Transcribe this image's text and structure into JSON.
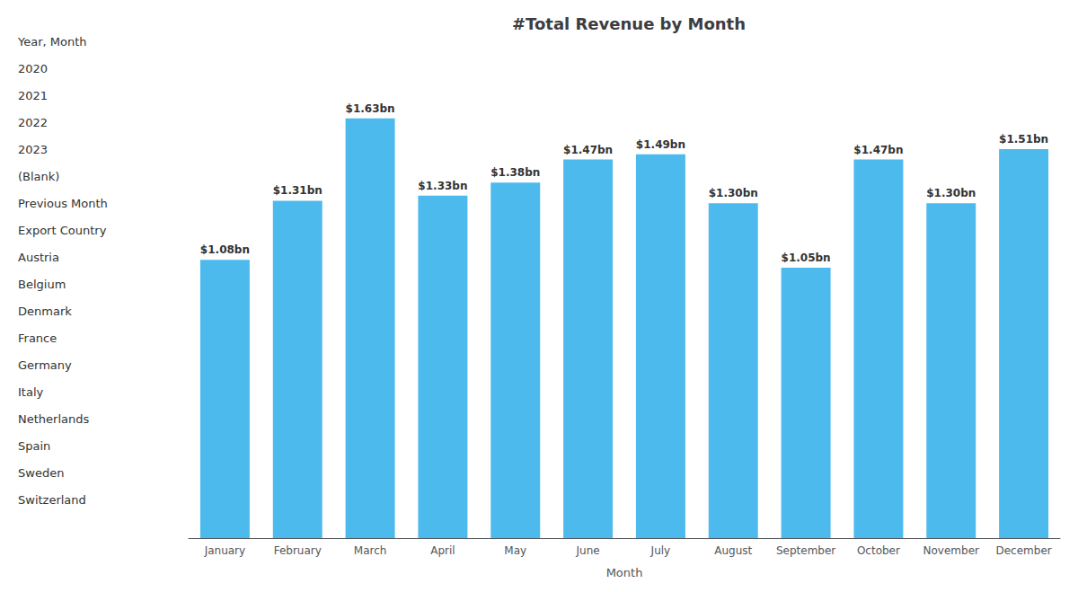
{
  "chart_data": {
    "type": "bar",
    "title": "#Total Revenue by Month",
    "xlabel": "Month",
    "categories": [
      "January",
      "February",
      "March",
      "April",
      "May",
      "June",
      "July",
      "August",
      "September",
      "October",
      "November",
      "December"
    ],
    "values": [
      1.08,
      1.31,
      1.63,
      1.33,
      1.38,
      1.47,
      1.49,
      1.3,
      1.05,
      1.47,
      1.3,
      1.51
    ],
    "value_labels": [
      "$1.08bn",
      "$1.31bn",
      "$1.63bn",
      "$1.33bn",
      "$1.38bn",
      "$1.47bn",
      "$1.49bn",
      "$1.30bn",
      "$1.05bn",
      "$1.47bn",
      "$1.30bn",
      "$1.51bn"
    ],
    "color": "#4DBAEE",
    "ylim": [
      0,
      1.88
    ],
    "grid": false,
    "data_labels": true,
    "tick_labels": "x",
    "annotations": [
      "Year, Month",
      "2020",
      "2021",
      "2022",
      "2023",
      "(Blank)",
      "Previous Month",
      "Export Country",
      "Austria",
      "Belgium",
      "Denmark",
      "France",
      "Germany",
      "Italy",
      "Netherlands",
      "Spain",
      "Sweden",
      "Switzerland"
    ]
  }
}
